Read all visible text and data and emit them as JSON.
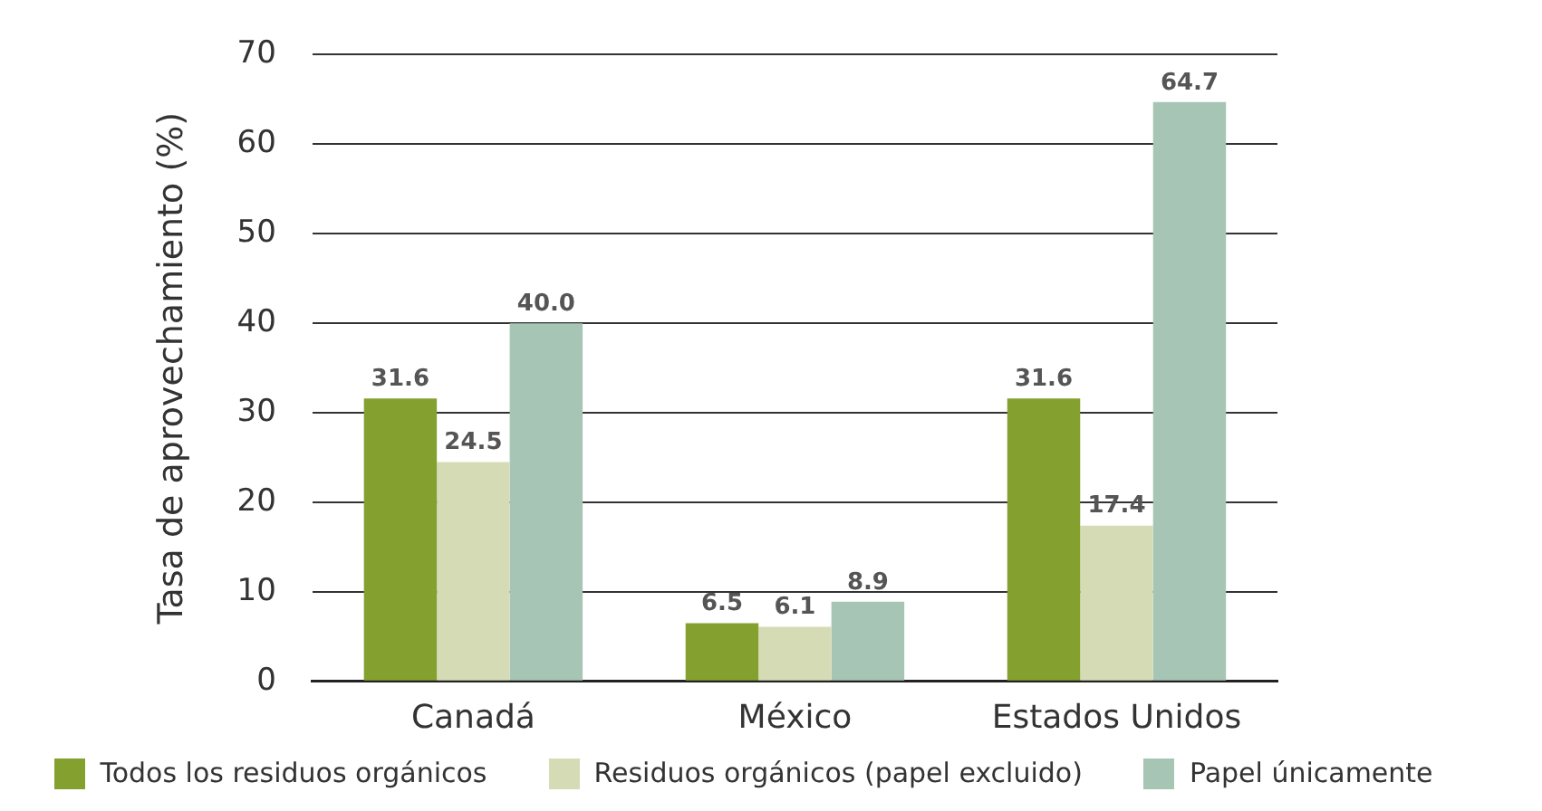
{
  "chart_data": {
    "type": "bar",
    "ylabel": "Tasa de aprovechamiento (%)",
    "categories": [
      "Canadá",
      "México",
      "Estados Unidos"
    ],
    "series": [
      {
        "name": "Todos los residuos orgánicos",
        "color": "#84a12f",
        "values": [
          31.6,
          6.5,
          31.6
        ]
      },
      {
        "name": "Residuos orgánicos (papel excluido)",
        "color": "#d5dcb5",
        "values": [
          24.5,
          6.1,
          17.4
        ]
      },
      {
        "name": "Papel únicamente",
        "color": "#a7c5b5",
        "values": [
          40.0,
          8.9,
          64.7
        ]
      }
    ],
    "value_labels": [
      [
        "31.6",
        "6.5",
        "31.6"
      ],
      [
        "24.5",
        "6.1",
        "17.4"
      ],
      [
        "40.0",
        "8.9",
        "64.7"
      ]
    ],
    "ylim": [
      0,
      70
    ],
    "yticks": [
      0,
      10,
      20,
      30,
      40,
      50,
      60,
      70
    ],
    "grid": "y",
    "legend": "bottom"
  }
}
